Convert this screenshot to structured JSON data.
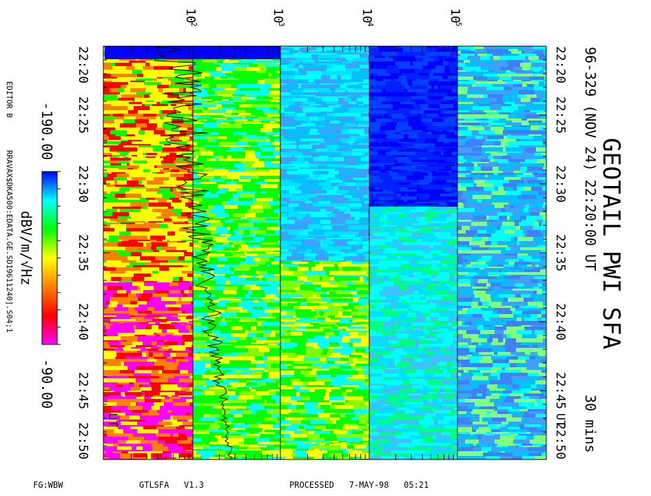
{
  "chart_data": {
    "type": "heatmap",
    "title": "GEOTAIL PWI SFA",
    "subtitle": "96-329 (NOV 24) 22:20:00 UT",
    "duration": "30 mins",
    "time_axis": {
      "ticks": [
        "22:20",
        "22:25",
        "22:30",
        "22:35",
        "22:40",
        "22:45",
        "22:50"
      ],
      "unit": "UT",
      "range": [
        "22:20",
        "22:50"
      ]
    },
    "freq_axis": {
      "scale": "log",
      "tick_labels": [
        {
          "base": "10",
          "exp": "2",
          "value": 100
        },
        {
          "base": "10",
          "exp": "3",
          "value": 1000
        },
        {
          "base": "10",
          "exp": "4",
          "value": 10000
        },
        {
          "base": "10",
          "exp": "5",
          "value": 100000
        }
      ]
    },
    "colorbar": {
      "label": "dBV/m/√Hz",
      "min": -190.0,
      "max": -90.0,
      "min_label": "-190.00",
      "max_label": "-90.00",
      "colors": [
        "#ff00ff",
        "#ff0000",
        "#ff8000",
        "#ffff00",
        "#00ff00",
        "#00ffff",
        "#0000ff"
      ]
    },
    "side_text": {
      "editor": "EDITOR B",
      "file": "RRAVAX$DKA500:EDATA.GE.SD19611240].S04;1"
    },
    "footer": {
      "left": "FG:WBW",
      "program": "GTLSFA   V1.3",
      "processed": "PROCESSED   7-MAY-98   05:21"
    }
  }
}
